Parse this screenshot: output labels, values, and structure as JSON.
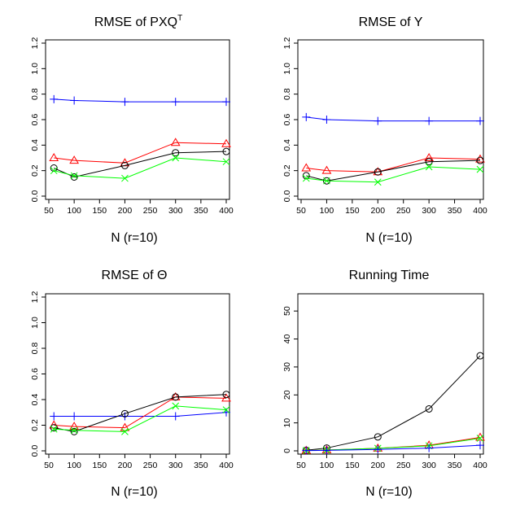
{
  "chart_data": [
    {
      "type": "line",
      "title": "RMSE of PXQ",
      "title_superscript": "T",
      "xlabel": "N (r=10)",
      "ylabel": "",
      "x": [
        60,
        100,
        200,
        300,
        400
      ],
      "xlim": [
        50,
        400
      ],
      "xticks": [
        50,
        100,
        150,
        200,
        250,
        300,
        350,
        400
      ],
      "ylim": [
        0,
        1.2
      ],
      "yticks": [
        0.0,
        0.2,
        0.4,
        0.6,
        0.8,
        1.0,
        1.2
      ],
      "ytick_labels": [
        "0.0",
        "0.2",
        "0.4",
        "0.6",
        "0.8",
        "1.0",
        "1.2"
      ],
      "grid": false,
      "legend": "none",
      "series": [
        {
          "color": "#0000ff",
          "marker": "plus",
          "values": [
            0.76,
            0.75,
            0.74,
            0.74,
            0.74
          ]
        },
        {
          "color": "#ff0000",
          "marker": "triangle",
          "values": [
            0.3,
            0.28,
            0.26,
            0.42,
            0.41
          ]
        },
        {
          "color": "#000000",
          "marker": "circle",
          "values": [
            0.22,
            0.15,
            0.24,
            0.34,
            0.35
          ]
        },
        {
          "color": "#00ff00",
          "marker": "cross",
          "values": [
            0.2,
            0.16,
            0.14,
            0.3,
            0.27
          ]
        }
      ]
    },
    {
      "type": "line",
      "title": "RMSE of Y",
      "xlabel": "N (r=10)",
      "ylabel": "",
      "x": [
        60,
        100,
        200,
        300,
        400
      ],
      "xlim": [
        50,
        400
      ],
      "xticks": [
        50,
        100,
        150,
        200,
        250,
        300,
        350,
        400
      ],
      "ylim": [
        0,
        1.2
      ],
      "yticks": [
        0.0,
        0.2,
        0.4,
        0.6,
        0.8,
        1.0,
        1.2
      ],
      "ytick_labels": [
        "0.0",
        "0.2",
        "0.4",
        "0.6",
        "0.8",
        "1.0",
        "1.2"
      ],
      "grid": false,
      "legend": "none",
      "series": [
        {
          "color": "#0000ff",
          "marker": "plus",
          "values": [
            0.62,
            0.6,
            0.59,
            0.59,
            0.59
          ]
        },
        {
          "color": "#ff0000",
          "marker": "triangle",
          "values": [
            0.22,
            0.2,
            0.19,
            0.3,
            0.29
          ]
        },
        {
          "color": "#000000",
          "marker": "circle",
          "values": [
            0.16,
            0.12,
            0.19,
            0.27,
            0.28
          ]
        },
        {
          "color": "#00ff00",
          "marker": "cross",
          "values": [
            0.14,
            0.12,
            0.11,
            0.23,
            0.21
          ]
        }
      ]
    },
    {
      "type": "line",
      "title": "RMSE of Θ",
      "xlabel": "N (r=10)",
      "ylabel": "",
      "x": [
        60,
        100,
        200,
        300,
        400
      ],
      "xlim": [
        50,
        400
      ],
      "xticks": [
        50,
        100,
        150,
        200,
        250,
        300,
        350,
        400
      ],
      "ylim": [
        0,
        1.2
      ],
      "yticks": [
        0.0,
        0.2,
        0.4,
        0.6,
        0.8,
        1.0,
        1.2
      ],
      "ytick_labels": [
        "0.0",
        "0.2",
        "0.4",
        "0.6",
        "0.8",
        "1.0",
        "1.2"
      ],
      "grid": false,
      "legend": "none",
      "series": [
        {
          "color": "#0000ff",
          "marker": "plus",
          "values": [
            0.27,
            0.27,
            0.27,
            0.27,
            0.3
          ]
        },
        {
          "color": "#ff0000",
          "marker": "triangle",
          "values": [
            0.2,
            0.19,
            0.18,
            0.42,
            0.41
          ]
        },
        {
          "color": "#000000",
          "marker": "circle",
          "values": [
            0.18,
            0.15,
            0.29,
            0.42,
            0.44
          ]
        },
        {
          "color": "#00ff00",
          "marker": "cross",
          "values": [
            0.17,
            0.16,
            0.15,
            0.35,
            0.32
          ]
        }
      ]
    },
    {
      "type": "line",
      "title": "Running Time",
      "xlabel": "N (r=10)",
      "ylabel": "",
      "x": [
        60,
        100,
        200,
        300,
        400
      ],
      "xlim": [
        50,
        400
      ],
      "xticks": [
        50,
        100,
        150,
        200,
        250,
        300,
        350,
        400
      ],
      "ylim": [
        0,
        55
      ],
      "yticks": [
        0,
        10,
        20,
        30,
        40,
        50
      ],
      "ytick_labels": [
        "0",
        "10",
        "20",
        "30",
        "40",
        "50"
      ],
      "grid": false,
      "legend": "none",
      "series": [
        {
          "color": "#000000",
          "marker": "circle",
          "values": [
            0.2,
            1.0,
            5.0,
            15.0,
            34.0
          ]
        },
        {
          "color": "#ff0000",
          "marker": "triangle",
          "values": [
            0.1,
            0.3,
            0.9,
            2.0,
            4.8
          ]
        },
        {
          "color": "#00ff00",
          "marker": "cross",
          "values": [
            0.1,
            0.3,
            0.9,
            1.8,
            4.5
          ]
        },
        {
          "color": "#0000ff",
          "marker": "plus",
          "values": [
            0.1,
            0.2,
            0.5,
            1.0,
            2.0
          ]
        }
      ]
    }
  ]
}
